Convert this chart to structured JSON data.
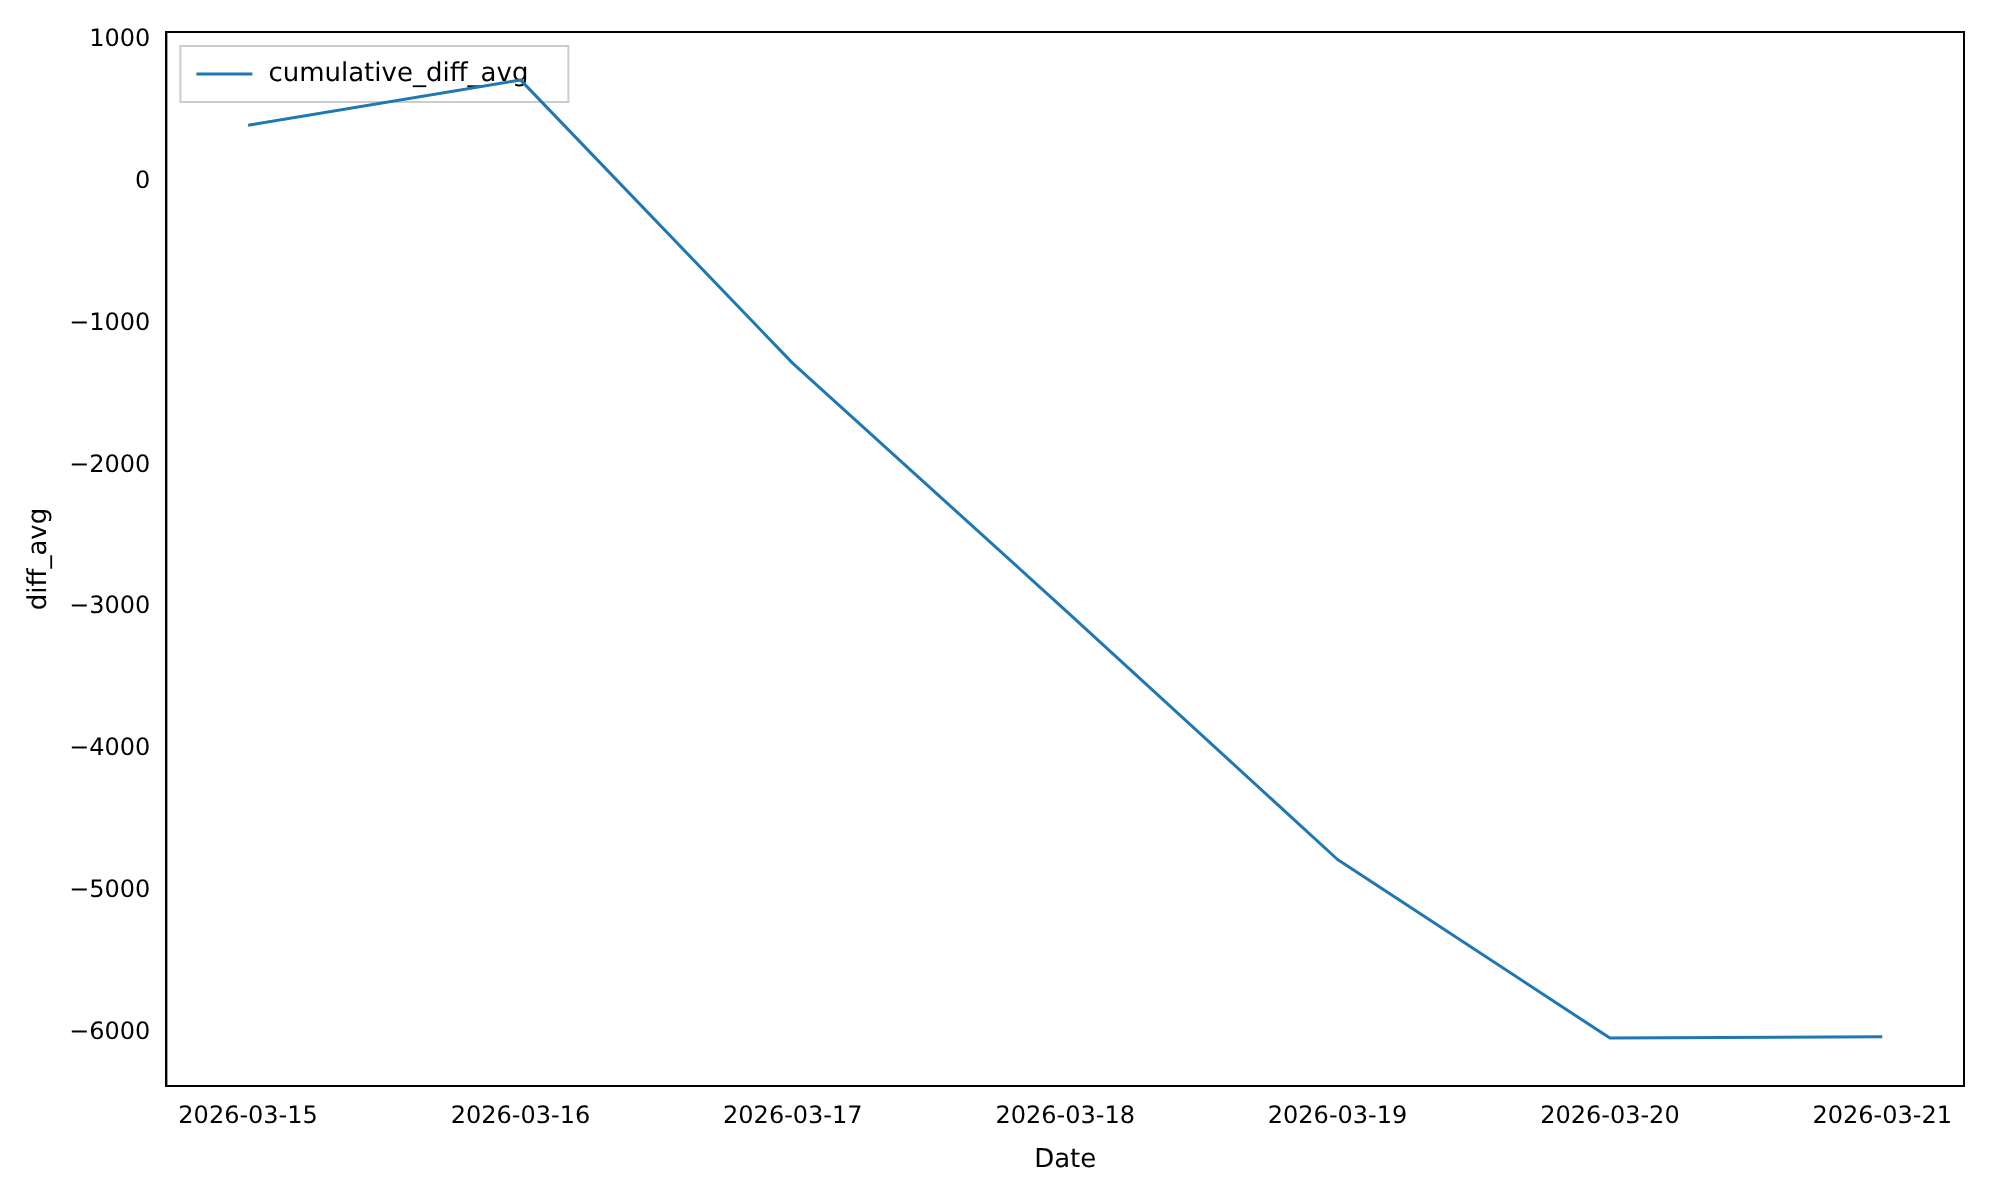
{
  "chart_data": {
    "type": "line",
    "xlabel": "Date",
    "ylabel": "diff_avg",
    "x": [
      "2026-03-15",
      "2026-03-16",
      "2026-03-17",
      "2026-03-18",
      "2026-03-19",
      "2026-03-20",
      "2026-03-21"
    ],
    "series": [
      {
        "name": "cumulative_diff_avg",
        "color": "#1f77b4",
        "values": [
          400,
          720,
          -1280,
          -3020,
          -4780,
          -6040,
          -6030
        ]
      }
    ],
    "xlim": [
      "2026-03-14T16:48",
      "2026-03-21T07:12"
    ],
    "xticks": [
      "2026-03-15",
      "2026-03-16",
      "2026-03-17",
      "2026-03-18",
      "2026-03-19",
      "2026-03-20",
      "2026-03-21"
    ],
    "ylim": [
      -6378,
      1058
    ],
    "yticks": [
      -6000,
      -5000,
      -4000,
      -3000,
      -2000,
      -1000,
      0,
      1000
    ],
    "grid": false,
    "legend": "top left",
    "marker": "none",
    "line_style": "solid"
  }
}
